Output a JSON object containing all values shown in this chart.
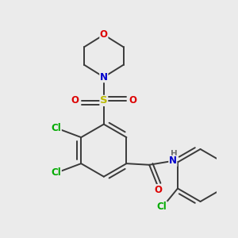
{
  "bg_color": "#ebebeb",
  "bond_color": "#3a3a3a",
  "bond_width": 1.4,
  "atom_colors": {
    "C": "#3a3a3a",
    "N": "#0000cc",
    "O": "#dd0000",
    "S": "#bbbb00",
    "Cl": "#00aa00",
    "H": "#707070"
  },
  "fs": 8.5
}
